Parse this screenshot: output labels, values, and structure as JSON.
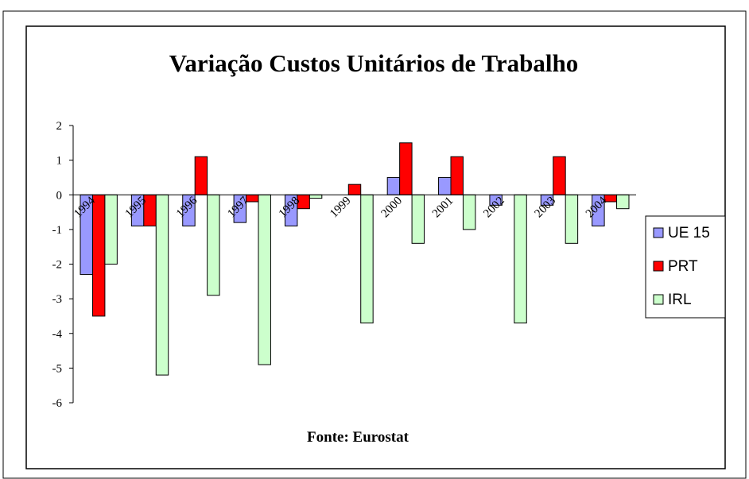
{
  "chart_data": {
    "type": "bar",
    "title": "Variação Custos Unitários de Trabalho",
    "note": "Fonte: Eurostat",
    "categories": [
      "1994",
      "1995",
      "1996",
      "1997",
      "1998",
      "1999",
      "2000",
      "2001",
      "2002",
      "2003",
      "2004"
    ],
    "series": [
      {
        "name": "UE 15",
        "color": "#9999ff",
        "values": [
          -2.3,
          -0.9,
          -0.9,
          -0.8,
          -0.9,
          0,
          0.5,
          0.5,
          -0.3,
          -0.3,
          -0.9
        ]
      },
      {
        "name": "PRT",
        "color": "#ff0000",
        "values": [
          -3.5,
          -0.9,
          1.1,
          -0.2,
          -0.4,
          0.3,
          1.5,
          1.1,
          0,
          1.1,
          -0.2
        ]
      },
      {
        "name": "IRL",
        "color": "#ccffcc",
        "values": [
          -2.0,
          -5.2,
          -2.9,
          -4.9,
          -0.1,
          -3.7,
          -1.4,
          -1.0,
          -3.7,
          -1.4,
          -0.4
        ]
      }
    ],
    "ylim": [
      -6,
      2
    ],
    "yticks": [
      -6,
      -5,
      -4,
      -3,
      -2,
      -1,
      0,
      1,
      2
    ],
    "legend": "right"
  }
}
